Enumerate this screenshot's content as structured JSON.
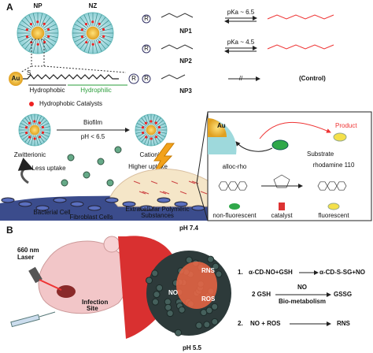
{
  "panel_a": {
    "label": "A",
    "np_label": "NP",
    "nz_label": "NZ",
    "au": "Au",
    "r_symbol": "R",
    "hydrophobic": "Hydrophobic",
    "hydrophilic": "Hydrophilic",
    "legend_catalysts": "Hydrophobic Catalysts",
    "reactions": [
      {
        "pka": "pKa ~ 6.5",
        "name": "NP1"
      },
      {
        "pka": "pKa ~ 4.5",
        "name": "NP2"
      },
      {
        "name": "NP3",
        "result": "(Control)"
      }
    ],
    "biofilm": "Biofilm",
    "ph": "pH < 6.5",
    "zwitterionic": "Zwitterionic",
    "cationic": "Cationic",
    "less_uptake": "Less uptake",
    "higher_uptake": "Higher uptake",
    "inset": {
      "au": "Au",
      "product": "Product",
      "substrate": "Substrate",
      "alloc_rho": "alloc-rho",
      "rhodamine": "rhodamine 110",
      "non_fluorescent": "non-fluorescent",
      "catalyst": "catalyst",
      "fluorescent": "fluorescent"
    },
    "bacterial_cell": "Bacterial Cell",
    "fibroblast_cells": "Fibroblast Cells",
    "eps": [
      "Extracellular Polymeric",
      "Substances"
    ]
  },
  "panel_b": {
    "label": "B",
    "laser": [
      "660 nm",
      "Laser"
    ],
    "infection_site": [
      "Infection",
      "Site"
    ],
    "ph_top": "pH 7.4",
    "ph_bottom": "pH 5.5",
    "no": "NO",
    "rns": "RNS",
    "ros": "ROS",
    "eq1": {
      "num": "1.",
      "left": "α-CD-NO+GSH",
      "right": "α-CD-S-SG+NO",
      "left2": "2 GSH",
      "over": "NO",
      "right2": "GSSG",
      "under": "Bio-metabolism"
    },
    "eq2": {
      "num": "2.",
      "left": "NO + ROS",
      "right": "RNS"
    }
  }
}
